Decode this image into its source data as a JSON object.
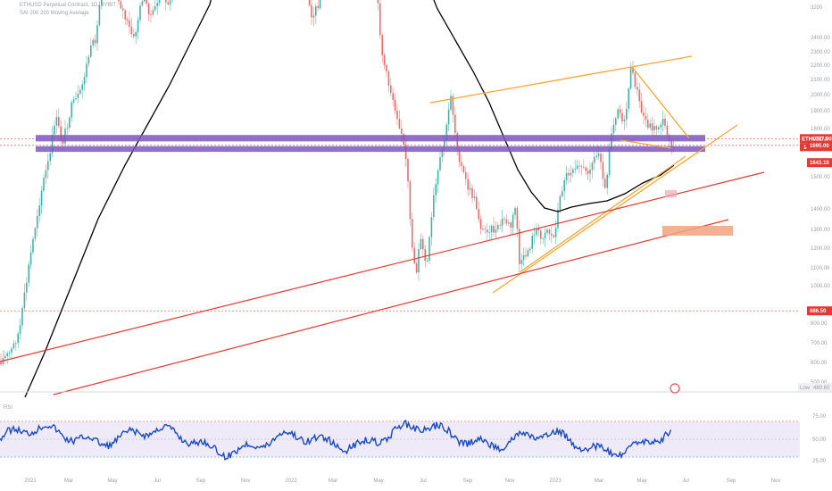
{
  "header": {
    "symbol_line": "ETHUSD Perpetual Contract, 1D, BYBIT",
    "ma_line": "SAI 200 200 Moving Average"
  },
  "rsi_panel": {
    "label": "RSI"
  },
  "low_marker": {
    "label": "Low",
    "value": "480.60"
  },
  "colors": {
    "candle_up": "#26a69a",
    "candle_down": "#ef5350",
    "ma": "#000000",
    "orange_lines": "#f7a631",
    "red_lines": "#e53935",
    "purple_zones": "#7e57c2",
    "price_tag": "#e53935",
    "rsi_line": "#1848cc",
    "rsi_band": "#efeaf8"
  },
  "chart_data": {
    "type": "candlestick",
    "y_axis_labels": [
      "3200",
      "2400.00",
      "2300.00",
      "2200.00",
      "2100.00",
      "2000.00",
      "1900.00",
      "1800.00",
      "1500.00",
      "1400.00",
      "1300.00",
      "1200.00",
      "1100.00",
      "1000.00",
      "900.00",
      "800.00",
      "700.00",
      "600.00",
      "500.00"
    ],
    "y_range": [
      450,
      3200
    ],
    "x_axis_labels": [
      "2021",
      "Mar",
      "May",
      "Jul",
      "Sep",
      "Nov",
      "2022",
      "Mar",
      "May",
      "Jul",
      "Sep",
      "Nov",
      "2023",
      "Mar",
      "May",
      "Jul",
      "Sep",
      "Nov"
    ],
    "price_tags": [
      {
        "text": "ETHUSD.P",
        "value": 1737.0,
        "display": "1737.00"
      },
      {
        "text": "14:15:25",
        "value": 1737.0
      },
      {
        "text": "1695.00",
        "value": 1695.0
      },
      {
        "text": "1643.10",
        "value": 1643.1
      },
      {
        "text": "886.50",
        "value": 886.5
      }
    ],
    "horizontal_levels": [
      1737,
      1695,
      886.5
    ],
    "purple_zones": [
      {
        "from": 1720,
        "to": 1760
      },
      {
        "from": 1655,
        "to": 1690
      }
    ],
    "rsi": {
      "y_axis_labels": [
        "75.00",
        "50.00",
        "25.00"
      ],
      "overbought": 70,
      "oversold": 30
    }
  }
}
